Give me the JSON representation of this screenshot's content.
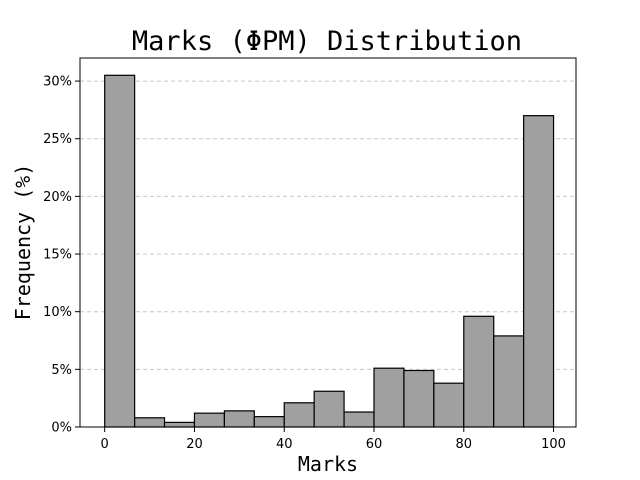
{
  "chart_data": {
    "type": "bar",
    "title": "Marks (ΦPM) Distribution",
    "xlabel": "Marks",
    "ylabel": "Frequency (%)",
    "bin_edges": [
      0,
      6.67,
      13.33,
      20,
      26.67,
      33.33,
      40,
      46.67,
      53.33,
      60,
      66.67,
      73.33,
      80,
      86.67,
      93.33,
      100
    ],
    "values": [
      30.5,
      0.8,
      0.4,
      1.2,
      1.4,
      0.9,
      2.1,
      3.1,
      1.3,
      5.1,
      4.9,
      3.8,
      9.6,
      7.9,
      27.0
    ],
    "xlim": [
      -5.5,
      105
    ],
    "ylim": [
      0,
      32
    ],
    "xticks": [
      0,
      20,
      40,
      60,
      80,
      100
    ],
    "yticks": [
      0,
      5,
      10,
      15,
      20,
      25,
      30
    ],
    "ytick_suffix": "%",
    "grid": "y-dashed",
    "bar_color": "#a0a0a0",
    "edge_color": "#000000"
  }
}
